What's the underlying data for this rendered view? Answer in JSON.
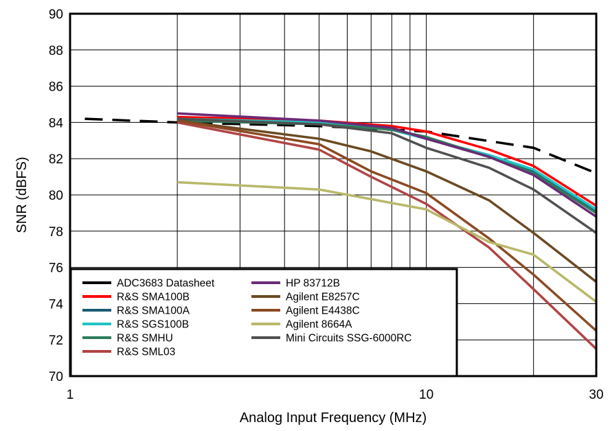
{
  "chart_data": {
    "type": "line",
    "title": "",
    "xlabel": "Analog Input Frequency (MHz)",
    "ylabel": "SNR (dBFS)",
    "x_scale": "log",
    "xlim": [
      1,
      30
    ],
    "ylim": [
      70,
      90
    ],
    "grid": true,
    "x_ticks": [
      1,
      10,
      30
    ],
    "y_ticks": [
      70,
      72,
      74,
      76,
      78,
      80,
      82,
      84,
      86,
      88,
      90
    ],
    "legend_position": "bottom-left",
    "series": [
      {
        "name": "ADC3683 Datasheet",
        "color": "#000000",
        "dashed": true,
        "x": [
          1.1,
          2,
          5,
          10,
          20,
          30
        ],
        "y": [
          84.2,
          84.0,
          83.8,
          83.5,
          82.6,
          81.2
        ]
      },
      {
        "name": "R&S SMA100B",
        "color": "#ff0000",
        "x": [
          2,
          5,
          8,
          10,
          15,
          20,
          30
        ],
        "y": [
          84.3,
          84.1,
          83.8,
          83.5,
          82.5,
          81.6,
          79.4
        ]
      },
      {
        "name": "R&S SMA100A",
        "color": "#1c5b73",
        "x": [
          2,
          5,
          8,
          10,
          15,
          20,
          30
        ],
        "y": [
          84.2,
          84.0,
          83.6,
          83.1,
          82.2,
          81.3,
          79.1
        ]
      },
      {
        "name": "R&S SGS100B",
        "color": "#22c4c4",
        "x": [
          2,
          5,
          8,
          10,
          15,
          20,
          30
        ],
        "y": [
          84.2,
          84.0,
          83.6,
          83.1,
          82.2,
          81.4,
          79.2
        ]
      },
      {
        "name": "R&S SMHU",
        "color": "#2e7d5b",
        "x": [
          2,
          5,
          8,
          10,
          15,
          20,
          30
        ],
        "y": [
          84.1,
          83.9,
          83.6,
          83.2,
          82.1,
          81.2,
          79.0
        ]
      },
      {
        "name": "R&S SML03",
        "color": "#b04545",
        "x": [
          2,
          5,
          7,
          10,
          15,
          20,
          30
        ],
        "y": [
          84.0,
          82.5,
          81.0,
          79.5,
          77.1,
          74.8,
          71.5
        ]
      },
      {
        "name": "HP 83712B",
        "color": "#6b2b76",
        "x": [
          2,
          5,
          8,
          10,
          15,
          20,
          30
        ],
        "y": [
          84.5,
          84.1,
          83.7,
          83.1,
          82.1,
          81.1,
          78.8
        ]
      },
      {
        "name": "Agilent E8257C",
        "color": "#6b4a22",
        "x": [
          2,
          5,
          7,
          10,
          15,
          20,
          30
        ],
        "y": [
          84.1,
          83.1,
          82.4,
          81.3,
          79.7,
          77.9,
          75.2
        ]
      },
      {
        "name": "Agilent E4438C",
        "color": "#8b4a22",
        "x": [
          2,
          5,
          7,
          10,
          15,
          20,
          30
        ],
        "y": [
          84.1,
          82.8,
          81.3,
          80.1,
          77.6,
          75.6,
          72.5
        ]
      },
      {
        "name": "Agilent 8664A",
        "color": "#b8b86a",
        "x": [
          2,
          5,
          10,
          15,
          20,
          30
        ],
        "y": [
          80.7,
          80.3,
          79.2,
          77.4,
          76.7,
          74.1
        ]
      },
      {
        "name": "Mini Circuits SSG-6000RC",
        "color": "#505050",
        "x": [
          2,
          5,
          8,
          10,
          15,
          20,
          30
        ],
        "y": [
          84.2,
          83.9,
          83.4,
          82.6,
          81.5,
          80.3,
          77.9
        ]
      }
    ]
  }
}
